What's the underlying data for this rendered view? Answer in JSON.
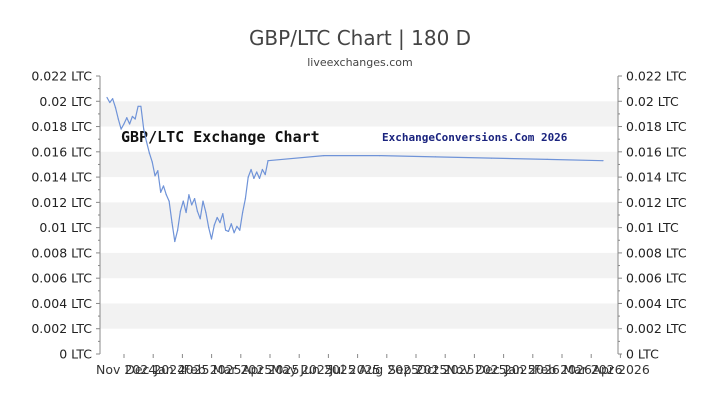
{
  "header": {
    "title": "GBP/LTC Chart | 180 D",
    "subtitle": "liveexchanges.com"
  },
  "watermarks": {
    "left": "GBP/LTC Exchange Chart",
    "right": "ExchangeConversions.Com 2026"
  },
  "colors": {
    "line": "#6f93d8",
    "band": "#f2f2f2",
    "axis": "#888888"
  },
  "chart_data": {
    "type": "line",
    "title": "GBP/LTC Chart | 180 D",
    "xlabel": "",
    "ylabel": "",
    "ylim": [
      0,
      0.022
    ],
    "y_ticks": [
      "0 LTC",
      "0.002 LTC",
      "0.004 LTC",
      "0.006 LTC",
      "0.008 LTC",
      "0.01 LTC",
      "0.012 LTC",
      "0.014 LTC",
      "0.016 LTC",
      "0.018 LTC",
      "0.02 LTC",
      "0.022 LTC"
    ],
    "x_ticks": [
      "Nov 2024",
      "Dec 2024",
      "Jan 2025",
      "Feb 2025",
      "Mar 2025",
      "Apr 2025",
      "May 2025",
      "Jun 2025",
      "Jul 2025",
      "Aug 2025",
      "Sep 2025",
      "Oct 2025",
      "Nov 2025",
      "Dec 2025",
      "Jan 2026",
      "Feb 2026",
      "Mar 2026",
      "Apr 2026"
    ],
    "grid": true,
    "series": [
      {
        "values": [
          0.0203,
          0.0199,
          0.0202,
          0.0195,
          0.0186,
          0.0178,
          0.0182,
          0.0187,
          0.0182,
          0.0188,
          0.0186,
          0.0196,
          0.0196,
          0.0178,
          0.0168,
          0.0159,
          0.0152,
          0.0141,
          0.0145,
          0.0128,
          0.0133,
          0.0126,
          0.0121,
          0.0104,
          0.0089,
          0.0098,
          0.0113,
          0.0121,
          0.0112,
          0.0126,
          0.0118,
          0.0123,
          0.0113,
          0.0107,
          0.0121,
          0.0112,
          0.01,
          0.0091,
          0.0102,
          0.0108,
          0.0104,
          0.0111,
          0.0098,
          0.0097,
          0.0103,
          0.0096,
          0.0101,
          0.0098,
          0.0112,
          0.0123,
          0.014,
          0.0146,
          0.0139,
          0.0144,
          0.0139,
          0.0146,
          0.0142,
          0.0153,
          0.0157,
          0.0157,
          0.0156,
          0.0155,
          0.0154,
          0.0153
        ]
      }
    ]
  }
}
